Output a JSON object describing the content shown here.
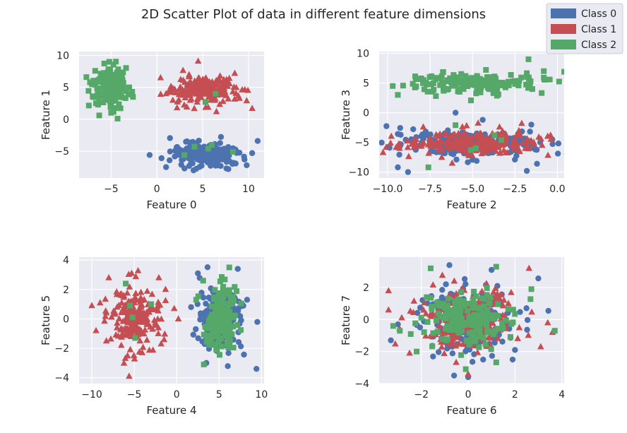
{
  "figure": {
    "title": "2D Scatter Plot of data in different feature dimensions"
  },
  "legend": {
    "placement": "top-right",
    "entries": [
      {
        "label": "Class 0",
        "color": "#4c72b0",
        "marker": "circle"
      },
      {
        "label": "Class 1",
        "color": "#c44e52",
        "marker": "triangle"
      },
      {
        "label": "Class 2",
        "color": "#55a868",
        "marker": "square"
      }
    ]
  },
  "style": {
    "background": "#eaeaf2",
    "grid_color": "#ffffff",
    "grid": true
  },
  "chart_data": [
    {
      "type": "scatter",
      "xlabel": "Feature 0",
      "ylabel": "Feature 1",
      "xlim": [
        -8.5,
        11.7
      ],
      "ylim": [
        -9.2,
        10.6
      ],
      "xticks": [
        -5,
        0,
        5,
        10
      ],
      "yticks": [
        -5,
        0,
        5,
        10
      ],
      "series": [
        {
          "name": "Class 0",
          "marker": "circle",
          "color": "#4c72b0",
          "n": 220,
          "center": [
            5.0,
            -5.4
          ],
          "spread": [
            1.7,
            0.9
          ],
          "points": [
            [
              -0.8,
              -5.6
            ],
            [
              0.5,
              -6.1
            ],
            [
              11.0,
              -3.4
            ],
            [
              10.4,
              -5.3
            ],
            [
              9.8,
              -7.2
            ],
            [
              7.8,
              -7.8
            ],
            [
              4.0,
              -8.0
            ],
            [
              1.0,
              -7.5
            ]
          ]
        },
        {
          "name": "Class 1",
          "marker": "triangle",
          "color": "#c44e52",
          "n": 220,
          "center": [
            5.1,
            4.6
          ],
          "spread": [
            1.7,
            1.0
          ],
          "points": [
            [
              0.4,
              6.5
            ],
            [
              1.0,
              4.0
            ],
            [
              9.8,
              2.9
            ],
            [
              10.4,
              1.7
            ],
            [
              8.5,
              7.2
            ],
            [
              4.5,
              9.1
            ],
            [
              2.2,
              1.8
            ],
            [
              6.5,
              1.2
            ]
          ]
        },
        {
          "name": "Class 2",
          "marker": "square",
          "color": "#55a868",
          "n": 170,
          "center": [
            -5.1,
            5.0
          ],
          "spread": [
            0.9,
            1.6
          ],
          "points": [
            [
              -7.7,
              6.6
            ],
            [
              -2.7,
              4.3
            ],
            [
              -6.3,
              0.6
            ],
            [
              -4.3,
              0.1
            ],
            [
              -5.2,
              9.0
            ],
            [
              6.4,
              4.0
            ],
            [
              3.0,
              -5.6
            ],
            [
              5.6,
              -4.6
            ],
            [
              8.3,
              -5.1
            ],
            [
              4.1,
              -4.3
            ],
            [
              5.3,
              2.7
            ],
            [
              6.0,
              -4.0
            ]
          ]
        }
      ]
    },
    {
      "type": "scatter",
      "xlabel": "Feature 2",
      "ylabel": "Feature 3",
      "xlim": [
        -10.5,
        0.4
      ],
      "ylim": [
        -11.0,
        10.3
      ],
      "xticks": [
        -10.0,
        -7.5,
        -5.0,
        -2.5,
        0.0
      ],
      "xtick_labels": [
        "−10.0",
        "−7.5",
        "−5.0",
        "−2.5",
        "0.0"
      ],
      "yticks": [
        -10,
        -5,
        0,
        5,
        10
      ],
      "series": [
        {
          "name": "Class 0",
          "marker": "circle",
          "color": "#4c72b0",
          "n": 220,
          "center": [
            -5.2,
            -5.2
          ],
          "spread": [
            2.1,
            1.1
          ],
          "points": [
            [
              -9.4,
              -9.2
            ],
            [
              -8.8,
              -10.0
            ],
            [
              -0.3,
              -4.5
            ],
            [
              -1.8,
              -9.8
            ],
            [
              -6.0,
              0.0
            ],
            [
              -4.4,
              -1.2
            ],
            [
              -1.2,
              -8.6
            ],
            [
              -10.0,
              -5.8
            ]
          ]
        },
        {
          "name": "Class 1",
          "marker": "triangle",
          "color": "#c44e52",
          "n": 220,
          "center": [
            -5.0,
            -5.1
          ],
          "spread": [
            2.0,
            1.0
          ],
          "points": [
            [
              -9.3,
              -6.0
            ],
            [
              -0.4,
              -3.8
            ],
            [
              -0.9,
              -5.5
            ],
            [
              -2.1,
              -1.8
            ],
            [
              -7.9,
              -2.4
            ],
            [
              -6.2,
              -8.5
            ]
          ]
        },
        {
          "name": "Class 2",
          "marker": "square",
          "color": "#55a868",
          "n": 170,
          "center": [
            -5.1,
            5.0
          ],
          "spread": [
            2.0,
            0.9
          ],
          "points": [
            [
              -9.7,
              4.5
            ],
            [
              -9.4,
              3.0
            ],
            [
              -1.7,
              9.0
            ],
            [
              -0.8,
              7.0
            ],
            [
              -7.6,
              -9.2
            ],
            [
              -4.8,
              -6.0
            ],
            [
              -3.3,
              -4.6
            ],
            [
              -6.0,
              -2.1
            ],
            [
              -5.1,
              -6.3
            ],
            [
              -3.7,
              -3.8
            ]
          ]
        }
      ]
    },
    {
      "type": "scatter",
      "xlabel": "Feature 4",
      "ylabel": "Feature 5",
      "xlim": [
        -11.5,
        10.3
      ],
      "ylim": [
        -4.4,
        4.2
      ],
      "xticks": [
        -10,
        -5,
        0,
        5,
        10
      ],
      "yticks": [
        -4,
        -2,
        0,
        2,
        4
      ],
      "series": [
        {
          "name": "Class 0",
          "marker": "circle",
          "color": "#4c72b0",
          "n": 220,
          "center": [
            5.2,
            0.0
          ],
          "spread": [
            1.3,
            1.0
          ],
          "points": [
            [
              9.4,
              -3.4
            ],
            [
              8.3,
              1.3
            ],
            [
              1.7,
              0.8
            ],
            [
              2.5,
              3.1
            ],
            [
              7.2,
              3.4
            ],
            [
              3.5,
              -3.0
            ]
          ]
        },
        {
          "name": "Class 1",
          "marker": "triangle",
          "color": "#c44e52",
          "n": 220,
          "center": [
            -5.0,
            0.0
          ],
          "spread": [
            1.5,
            1.0
          ],
          "points": [
            [
              -10.0,
              0.9
            ],
            [
              -9.5,
              -0.8
            ],
            [
              -5.6,
              -3.9
            ],
            [
              -8.0,
              2.8
            ],
            [
              -2.1,
              2.8
            ],
            [
              0.2,
              0.0
            ],
            [
              -5.3,
              3.1
            ]
          ]
        },
        {
          "name": "Class 2",
          "marker": "square",
          "color": "#55a868",
          "n": 170,
          "center": [
            5.3,
            0.0
          ],
          "spread": [
            0.9,
            1.1
          ],
          "points": [
            [
              2.3,
              1.3
            ],
            [
              3.2,
              -3.1
            ],
            [
              6.2,
              3.5
            ],
            [
              -5.5,
              0.9
            ],
            [
              -3.0,
              1.0
            ],
            [
              -4.9,
              -1.3
            ],
            [
              -5.2,
              0.1
            ],
            [
              -6.0,
              2.4
            ]
          ]
        }
      ]
    },
    {
      "type": "scatter",
      "xlabel": "Feature 6",
      "ylabel": "Feature 7",
      "xlim": [
        -3.8,
        4.1
      ],
      "ylim": [
        -4.0,
        3.9
      ],
      "xticks": [
        -2,
        0,
        2,
        4
      ],
      "yticks": [
        -4,
        -2,
        0,
        2
      ],
      "series": [
        {
          "name": "Class 0",
          "marker": "circle",
          "color": "#4c72b0",
          "n": 220,
          "center": [
            0.0,
            0.0
          ],
          "spread": [
            1.0,
            1.0
          ],
          "points": [
            [
              -3.3,
              -1.3
            ],
            [
              -3.0,
              -0.3
            ],
            [
              -0.8,
              3.4
            ],
            [
              1.0,
              3.1
            ],
            [
              2.0,
              -1.9
            ],
            [
              1.9,
              -2.5
            ],
            [
              0.0,
              -3.6
            ],
            [
              -0.6,
              -3.5
            ]
          ]
        },
        {
          "name": "Class 1",
          "marker": "triangle",
          "color": "#c44e52",
          "n": 220,
          "center": [
            0.0,
            0.0
          ],
          "spread": [
            1.0,
            1.0
          ],
          "points": [
            [
              -3.4,
              1.8
            ],
            [
              -3.4,
              0.6
            ],
            [
              3.6,
              -0.8
            ],
            [
              3.4,
              -0.2
            ],
            [
              2.6,
              3.2
            ],
            [
              -2.5,
              -2.1
            ],
            [
              3.1,
              -1.7
            ],
            [
              0.0,
              -3.4
            ]
          ]
        },
        {
          "name": "Class 2",
          "marker": "square",
          "color": "#55a868",
          "n": 170,
          "center": [
            0.0,
            0.0
          ],
          "spread": [
            0.9,
            0.9
          ],
          "points": [
            [
              -1.6,
              3.2
            ],
            [
              1.2,
              3.3
            ],
            [
              -2.2,
              -2.0
            ],
            [
              3.7,
              -0.7
            ],
            [
              2.7,
              1.9
            ],
            [
              -0.1,
              -3.1
            ],
            [
              -3.2,
              -0.4
            ]
          ]
        }
      ]
    }
  ]
}
